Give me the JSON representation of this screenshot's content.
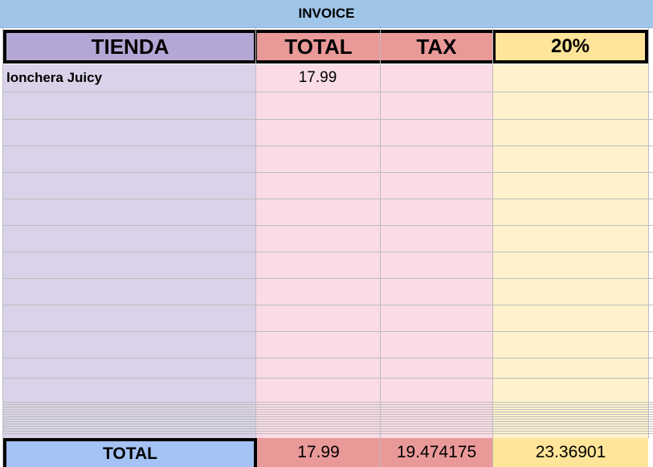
{
  "header": {
    "title": "INVOICE"
  },
  "table": {
    "columns": [
      "TIENDA",
      "TOTAL",
      "TAX",
      "20%"
    ],
    "rows": [
      {
        "tienda": "lonchera Juicy",
        "total": "17.99"
      }
    ],
    "totals": {
      "label": "TOTAL",
      "total": 17.99,
      "tax": 19.474175,
      "percent": 23.36901
    }
  }
}
